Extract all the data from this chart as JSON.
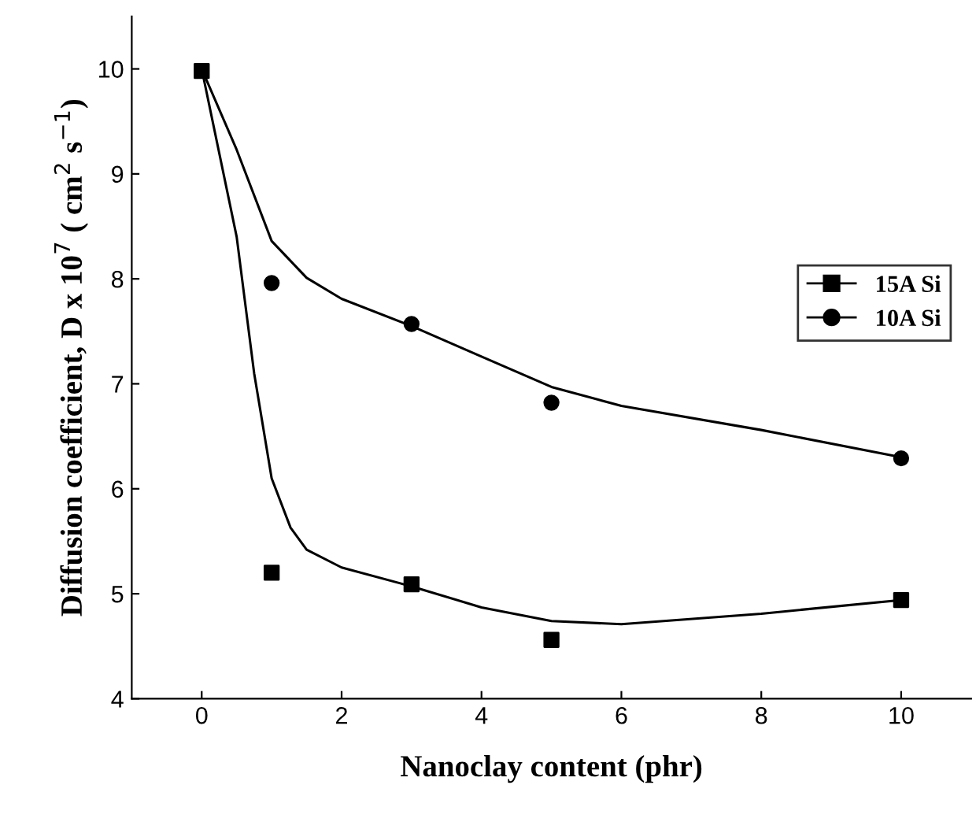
{
  "chart_data": {
    "type": "scatter",
    "xlabel": "Nanoclay content (phr)",
    "ylabel": "Diffusion coefficient, D x 10$^{7}$ ( cm$^{2}$ s$^{−1}$)",
    "xlim": [
      -1,
      11
    ],
    "ylim": [
      4,
      10.5
    ],
    "xticks": [
      0,
      2,
      4,
      6,
      8,
      10
    ],
    "yticks": [
      4,
      5,
      6,
      7,
      8,
      9,
      10
    ],
    "grid": false,
    "legend": "right",
    "series": [
      {
        "name": "15A Si",
        "marker": "square",
        "color": "#000000",
        "x": [
          0,
          1,
          3,
          5,
          10
        ],
        "values": [
          9.98,
          5.2,
          5.09,
          4.56,
          4.94
        ]
      },
      {
        "name": "10A Si",
        "marker": "circle",
        "color": "#000000",
        "x": [
          1,
          3,
          5,
          10
        ],
        "values": [
          7.96,
          7.57,
          6.82,
          6.29
        ]
      },
      {
        "type": "line",
        "marker": "none",
        "color": "#000000",
        "x": [
          0,
          0.5,
          0.75,
          1,
          1.27,
          1.5,
          2,
          3,
          4,
          5,
          6,
          8,
          10
        ],
        "values": [
          10,
          8.4,
          7.1,
          6.1,
          5.63,
          5.42,
          5.25,
          5.07,
          4.87,
          4.74,
          4.71,
          4.81,
          4.94
        ]
      },
      {
        "type": "line",
        "marker": "none",
        "color": "#000000",
        "x": [
          0,
          0.5,
          1,
          1.5,
          2,
          3,
          4,
          5,
          6,
          8,
          10
        ],
        "values": [
          10,
          9.23,
          8.36,
          8.01,
          7.81,
          7.55,
          7.26,
          6.97,
          6.79,
          6.56,
          6.3
        ]
      }
    ]
  }
}
